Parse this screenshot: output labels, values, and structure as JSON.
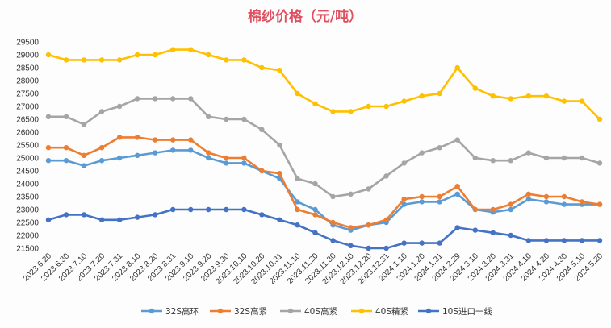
{
  "chart_data": {
    "type": "line",
    "title": "棉纱价格（元/吨）",
    "title_color": "#e05060",
    "xlabel": "",
    "ylabel": "",
    "ylim": [
      21500,
      29500
    ],
    "yticks": [
      21500,
      22000,
      22500,
      23000,
      23500,
      24000,
      24500,
      25000,
      25500,
      26000,
      26500,
      27000,
      27500,
      28000,
      28500,
      29000,
      29500
    ],
    "grid": false,
    "legend_position": "bottom",
    "categories": [
      "2023.6.20",
      "2023.6.30",
      "2023.7.10",
      "2023.7.20",
      "2023.7.31",
      "2023.8.10",
      "2023.8.20",
      "2023.8.31",
      "2023.9.10",
      "2023.9.20",
      "2023.9.30",
      "2023.10.10",
      "2023.10.20",
      "2023.10.31",
      "2023.11.10",
      "2023.11.20",
      "2023.11.30",
      "2023.12.10",
      "2023.12.20",
      "2023.12.31",
      "2024.1.10",
      "2024.1.20",
      "2024.1.31",
      "2024.2.29",
      "2024.3.10",
      "2024.3.20",
      "2024.3.31",
      "2024.4.10",
      "2024.4.20",
      "2024.4.30",
      "2024.5.10",
      "2024.5.20"
    ],
    "series": [
      {
        "name": "32S高环",
        "color": "#5b9bd5",
        "values": [
          24900,
          24900,
          24700,
          24900,
          25000,
          25100,
          25200,
          25300,
          25300,
          25000,
          24800,
          24800,
          24500,
          24200,
          23300,
          23000,
          22400,
          22200,
          22400,
          22500,
          23200,
          23300,
          23300,
          23600,
          23000,
          22900,
          23000,
          23400,
          23300,
          23200,
          23200,
          23200
        ]
      },
      {
        "name": "32S高紧",
        "color": "#ed7d31",
        "values": [
          25400,
          25400,
          25100,
          25400,
          25800,
          25800,
          25700,
          25700,
          25700,
          25200,
          25000,
          25000,
          24500,
          24400,
          23000,
          22800,
          22500,
          22300,
          22400,
          22600,
          23400,
          23500,
          23500,
          23900,
          23000,
          23000,
          23200,
          23600,
          23500,
          23500,
          23300,
          23200
        ]
      },
      {
        "name": "40S高紧",
        "color": "#a5a5a5",
        "values": [
          26600,
          26600,
          26300,
          26800,
          27000,
          27300,
          27300,
          27300,
          27300,
          26600,
          26500,
          26500,
          26100,
          25500,
          24200,
          24000,
          23500,
          23600,
          23800,
          24300,
          24800,
          25200,
          25400,
          25700,
          25000,
          24900,
          24900,
          25200,
          25000,
          25000,
          25000,
          24800
        ]
      },
      {
        "name": "40S精紧",
        "color": "#ffc000",
        "values": [
          29000,
          28800,
          28800,
          28800,
          28800,
          29000,
          29000,
          29200,
          29200,
          29000,
          28800,
          28800,
          28500,
          28400,
          27500,
          27100,
          26800,
          26800,
          27000,
          27000,
          27200,
          27400,
          27500,
          28500,
          27700,
          27400,
          27300,
          27400,
          27400,
          27200,
          27200,
          26500
        ]
      },
      {
        "name": "10S进口一线",
        "color": "#4472c4",
        "values": [
          22600,
          22800,
          22800,
          22600,
          22600,
          22700,
          22800,
          23000,
          23000,
          23000,
          23000,
          23000,
          22800,
          22600,
          22400,
          22100,
          21800,
          21600,
          21500,
          21500,
          21700,
          21700,
          21700,
          22300,
          22200,
          22100,
          22000,
          21800,
          21800,
          21800,
          21800,
          21800
        ]
      }
    ]
  }
}
